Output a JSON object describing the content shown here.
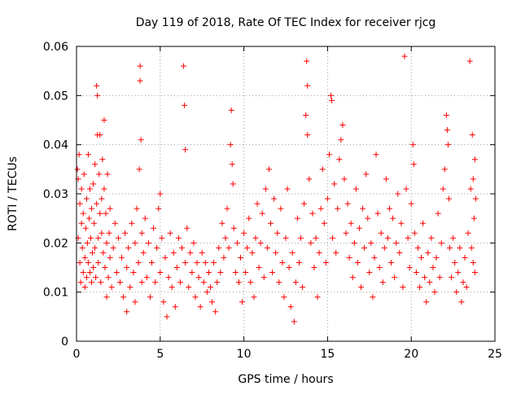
{
  "chart_data": {
    "type": "scatter",
    "title": "Day 119 of 2018, Rate Of TEC Index for receiver rjcg",
    "xlabel": "GPS time / hours",
    "ylabel": "ROTI / TECUs",
    "xlim": [
      0,
      25
    ],
    "ylim": [
      0,
      0.06
    ],
    "grid": true,
    "legend": "none",
    "marker": "+",
    "x_ticks": [
      {
        "value": 0,
        "label": "0"
      },
      {
        "value": 5,
        "label": "5"
      },
      {
        "value": 10,
        "label": "10"
      },
      {
        "value": 15,
        "label": "15"
      },
      {
        "value": 20,
        "label": "20"
      },
      {
        "value": 25,
        "label": "25"
      }
    ],
    "y_ticks": [
      {
        "value": 0,
        "label": "0"
      },
      {
        "value": 0.01,
        "label": "0.01"
      },
      {
        "value": 0.02,
        "label": "0.02"
      },
      {
        "value": 0.03,
        "label": "0.03"
      },
      {
        "value": 0.04,
        "label": "0.04"
      },
      {
        "value": 0.05,
        "label": "0.05"
      },
      {
        "value": 0.06,
        "label": "0.06"
      }
    ],
    "series": [
      {
        "name": "ROTI",
        "color": "#ff0000",
        "points": [
          [
            0.05,
            0.035
          ],
          [
            0.1,
            0.033
          ],
          [
            0.1,
            0.021
          ],
          [
            0.15,
            0.038
          ],
          [
            0.2,
            0.028
          ],
          [
            0.2,
            0.016
          ],
          [
            0.25,
            0.012
          ],
          [
            0.3,
            0.031
          ],
          [
            0.3,
            0.024
          ],
          [
            0.35,
            0.019
          ],
          [
            0.4,
            0.026
          ],
          [
            0.4,
            0.014
          ],
          [
            0.45,
            0.034
          ],
          [
            0.5,
            0.017
          ],
          [
            0.5,
            0.011
          ],
          [
            0.55,
            0.023
          ],
          [
            0.6,
            0.029
          ],
          [
            0.6,
            0.013
          ],
          [
            0.65,
            0.02
          ],
          [
            0.7,
            0.038
          ],
          [
            0.7,
            0.016
          ],
          [
            0.75,
            0.025
          ],
          [
            0.8,
            0.014
          ],
          [
            0.8,
            0.031
          ],
          [
            0.85,
            0.021
          ],
          [
            0.9,
            0.012
          ],
          [
            0.9,
            0.027
          ],
          [
            0.95,
            0.018
          ],
          [
            1.0,
            0.032
          ],
          [
            1.0,
            0.015
          ],
          [
            1.05,
            0.024
          ],
          [
            1.1,
            0.036
          ],
          [
            1.1,
            0.019
          ],
          [
            1.15,
            0.013
          ],
          [
            1.2,
            0.052
          ],
          [
            1.2,
            0.028
          ],
          [
            1.25,
            0.05
          ],
          [
            1.25,
            0.042
          ],
          [
            1.3,
            0.021
          ],
          [
            1.3,
            0.016
          ],
          [
            1.35,
            0.034
          ],
          [
            1.4,
            0.042
          ],
          [
            1.4,
            0.026
          ],
          [
            1.45,
            0.012
          ],
          [
            1.5,
            0.029
          ],
          [
            1.5,
            0.022
          ],
          [
            1.55,
            0.037
          ],
          [
            1.6,
            0.018
          ],
          [
            1.65,
            0.045
          ],
          [
            1.65,
            0.031
          ],
          [
            1.7,
            0.015
          ],
          [
            1.75,
            0.026
          ],
          [
            1.8,
            0.02
          ],
          [
            1.8,
            0.009
          ],
          [
            1.85,
            0.034
          ],
          [
            1.9,
            0.013
          ],
          [
            1.95,
            0.022
          ],
          [
            2.0,
            0.017
          ],
          [
            2.0,
            0.027
          ],
          [
            2.1,
            0.011
          ],
          [
            2.2,
            0.019
          ],
          [
            2.3,
            0.024
          ],
          [
            2.4,
            0.014
          ],
          [
            2.5,
            0.021
          ],
          [
            2.6,
            0.012
          ],
          [
            2.7,
            0.017
          ],
          [
            2.8,
            0.009
          ],
          [
            2.9,
            0.022
          ],
          [
            3.0,
            0.015
          ],
          [
            3.0,
            0.006
          ],
          [
            3.1,
            0.019
          ],
          [
            3.2,
            0.011
          ],
          [
            3.3,
            0.024
          ],
          [
            3.4,
            0.014
          ],
          [
            3.5,
            0.008
          ],
          [
            3.5,
            0.02
          ],
          [
            3.6,
            0.027
          ],
          [
            3.7,
            0.016
          ],
          [
            3.75,
            0.035
          ],
          [
            3.8,
            0.056
          ],
          [
            3.8,
            0.053
          ],
          [
            3.85,
            0.041
          ],
          [
            3.9,
            0.022
          ],
          [
            3.9,
            0.012
          ],
          [
            4.0,
            0.018
          ],
          [
            4.1,
            0.025
          ],
          [
            4.2,
            0.013
          ],
          [
            4.3,
            0.02
          ],
          [
            4.4,
            0.009
          ],
          [
            4.5,
            0.016
          ],
          [
            4.6,
            0.023
          ],
          [
            4.7,
            0.012
          ],
          [
            4.8,
            0.019
          ],
          [
            4.9,
            0.027
          ],
          [
            5.0,
            0.03
          ],
          [
            5.0,
            0.014
          ],
          [
            5.1,
            0.021
          ],
          [
            5.2,
            0.008
          ],
          [
            5.3,
            0.017
          ],
          [
            5.4,
            0.005
          ],
          [
            5.5,
            0.013
          ],
          [
            5.6,
            0.022
          ],
          [
            5.7,
            0.011
          ],
          [
            5.8,
            0.018
          ],
          [
            5.9,
            0.007
          ],
          [
            6.0,
            0.015
          ],
          [
            6.1,
            0.021
          ],
          [
            6.2,
            0.012
          ],
          [
            6.3,
            0.019
          ],
          [
            6.4,
            0.056
          ],
          [
            6.45,
            0.048
          ],
          [
            6.5,
            0.039
          ],
          [
            6.5,
            0.016
          ],
          [
            6.6,
            0.023
          ],
          [
            6.7,
            0.011
          ],
          [
            6.8,
            0.018
          ],
          [
            6.9,
            0.014
          ],
          [
            7.0,
            0.02
          ],
          [
            7.1,
            0.009
          ],
          [
            7.2,
            0.016
          ],
          [
            7.3,
            0.013
          ],
          [
            7.4,
            0.007
          ],
          [
            7.5,
            0.018
          ],
          [
            7.6,
            0.012
          ],
          [
            7.7,
            0.016
          ],
          [
            7.8,
            0.01
          ],
          [
            7.9,
            0.014
          ],
          [
            8.0,
            0.011
          ],
          [
            8.1,
            0.008
          ],
          [
            8.2,
            0.016
          ],
          [
            8.3,
            0.006
          ],
          [
            8.4,
            0.012
          ],
          [
            8.5,
            0.019
          ],
          [
            8.6,
            0.014
          ],
          [
            8.7,
            0.024
          ],
          [
            8.8,
            0.017
          ],
          [
            8.9,
            0.021
          ],
          [
            9.0,
            0.027
          ],
          [
            9.1,
            0.019
          ],
          [
            9.2,
            0.04
          ],
          [
            9.25,
            0.047
          ],
          [
            9.3,
            0.036
          ],
          [
            9.35,
            0.032
          ],
          [
            9.4,
            0.023
          ],
          [
            9.5,
            0.014
          ],
          [
            9.6,
            0.02
          ],
          [
            9.7,
            0.012
          ],
          [
            9.8,
            0.017
          ],
          [
            9.9,
            0.008
          ],
          [
            10.0,
            0.022
          ],
          [
            10.1,
            0.014
          ],
          [
            10.2,
            0.019
          ],
          [
            10.3,
            0.025
          ],
          [
            10.4,
            0.012
          ],
          [
            10.5,
            0.018
          ],
          [
            10.6,
            0.009
          ],
          [
            10.7,
            0.021
          ],
          [
            10.8,
            0.028
          ],
          [
            10.9,
            0.015
          ],
          [
            11.0,
            0.02
          ],
          [
            11.1,
            0.026
          ],
          [
            11.2,
            0.013
          ],
          [
            11.3,
            0.031
          ],
          [
            11.4,
            0.019
          ],
          [
            11.5,
            0.035
          ],
          [
            11.6,
            0.024
          ],
          [
            11.7,
            0.014
          ],
          [
            11.8,
            0.029
          ],
          [
            11.9,
            0.018
          ],
          [
            12.0,
            0.022
          ],
          [
            12.1,
            0.012
          ],
          [
            12.2,
            0.027
          ],
          [
            12.3,
            0.016
          ],
          [
            12.4,
            0.009
          ],
          [
            12.5,
            0.021
          ],
          [
            12.6,
            0.031
          ],
          [
            12.7,
            0.015
          ],
          [
            12.8,
            0.007
          ],
          [
            12.9,
            0.018
          ],
          [
            13.0,
            0.004
          ],
          [
            13.1,
            0.012
          ],
          [
            13.2,
            0.025
          ],
          [
            13.3,
            0.016
          ],
          [
            13.4,
            0.021
          ],
          [
            13.5,
            0.011
          ],
          [
            13.6,
            0.028
          ],
          [
            13.7,
            0.046
          ],
          [
            13.75,
            0.057
          ],
          [
            13.8,
            0.052
          ],
          [
            13.8,
            0.042
          ],
          [
            13.9,
            0.033
          ],
          [
            14.0,
            0.02
          ],
          [
            14.1,
            0.026
          ],
          [
            14.2,
            0.015
          ],
          [
            14.3,
            0.021
          ],
          [
            14.4,
            0.009
          ],
          [
            14.5,
            0.018
          ],
          [
            14.6,
            0.027
          ],
          [
            14.7,
            0.035
          ],
          [
            14.8,
            0.024
          ],
          [
            14.9,
            0.016
          ],
          [
            15.0,
            0.029
          ],
          [
            15.1,
            0.038
          ],
          [
            15.2,
            0.05
          ],
          [
            15.25,
            0.049
          ],
          [
            15.3,
            0.021
          ],
          [
            15.4,
            0.032
          ],
          [
            15.5,
            0.018
          ],
          [
            15.6,
            0.027
          ],
          [
            15.7,
            0.037
          ],
          [
            15.8,
            0.041
          ],
          [
            15.9,
            0.044
          ],
          [
            16.0,
            0.033
          ],
          [
            16.1,
            0.022
          ],
          [
            16.2,
            0.028
          ],
          [
            16.3,
            0.017
          ],
          [
            16.4,
            0.024
          ],
          [
            16.5,
            0.013
          ],
          [
            16.6,
            0.02
          ],
          [
            16.7,
            0.031
          ],
          [
            16.8,
            0.016
          ],
          [
            16.9,
            0.023
          ],
          [
            17.0,
            0.011
          ],
          [
            17.1,
            0.027
          ],
          [
            17.2,
            0.019
          ],
          [
            17.3,
            0.034
          ],
          [
            17.4,
            0.025
          ],
          [
            17.5,
            0.014
          ],
          [
            17.6,
            0.02
          ],
          [
            17.7,
            0.009
          ],
          [
            17.8,
            0.017
          ],
          [
            17.9,
            0.038
          ],
          [
            18.0,
            0.026
          ],
          [
            18.1,
            0.015
          ],
          [
            18.2,
            0.022
          ],
          [
            18.3,
            0.012
          ],
          [
            18.4,
            0.019
          ],
          [
            18.5,
            0.033
          ],
          [
            18.6,
            0.021
          ],
          [
            18.7,
            0.027
          ],
          [
            18.8,
            0.016
          ],
          [
            18.9,
            0.025
          ],
          [
            19.0,
            0.013
          ],
          [
            19.1,
            0.02
          ],
          [
            19.2,
            0.03
          ],
          [
            19.3,
            0.018
          ],
          [
            19.4,
            0.024
          ],
          [
            19.5,
            0.011
          ],
          [
            19.6,
            0.058
          ],
          [
            19.7,
            0.031
          ],
          [
            19.8,
            0.021
          ],
          [
            19.9,
            0.015
          ],
          [
            20.0,
            0.028
          ],
          [
            20.1,
            0.04
          ],
          [
            20.15,
            0.036
          ],
          [
            20.2,
            0.022
          ],
          [
            20.3,
            0.014
          ],
          [
            20.4,
            0.019
          ],
          [
            20.5,
            0.011
          ],
          [
            20.6,
            0.017
          ],
          [
            20.7,
            0.024
          ],
          [
            20.8,
            0.013
          ],
          [
            20.9,
            0.008
          ],
          [
            21.0,
            0.018
          ],
          [
            21.1,
            0.012
          ],
          [
            21.2,
            0.021
          ],
          [
            21.3,
            0.015
          ],
          [
            21.4,
            0.01
          ],
          [
            21.5,
            0.017
          ],
          [
            21.6,
            0.026
          ],
          [
            21.7,
            0.013
          ],
          [
            21.8,
            0.02
          ],
          [
            21.9,
            0.031
          ],
          [
            22.0,
            0.035
          ],
          [
            22.1,
            0.046
          ],
          [
            22.15,
            0.043
          ],
          [
            22.2,
            0.04
          ],
          [
            22.25,
            0.029
          ],
          [
            22.3,
            0.019
          ],
          [
            22.4,
            0.013
          ],
          [
            22.5,
            0.021
          ],
          [
            22.6,
            0.016
          ],
          [
            22.7,
            0.01
          ],
          [
            22.8,
            0.014
          ],
          [
            22.9,
            0.019
          ],
          [
            23.0,
            0.008
          ],
          [
            23.1,
            0.012
          ],
          [
            23.2,
            0.017
          ],
          [
            23.3,
            0.011
          ],
          [
            23.4,
            0.022
          ],
          [
            23.5,
            0.057
          ],
          [
            23.55,
            0.031
          ],
          [
            23.6,
            0.019
          ],
          [
            23.65,
            0.042
          ],
          [
            23.7,
            0.033
          ],
          [
            23.7,
            0.016
          ],
          [
            23.75,
            0.025
          ],
          [
            23.8,
            0.037
          ],
          [
            23.8,
            0.014
          ],
          [
            23.85,
            0.029
          ]
        ]
      }
    ]
  }
}
